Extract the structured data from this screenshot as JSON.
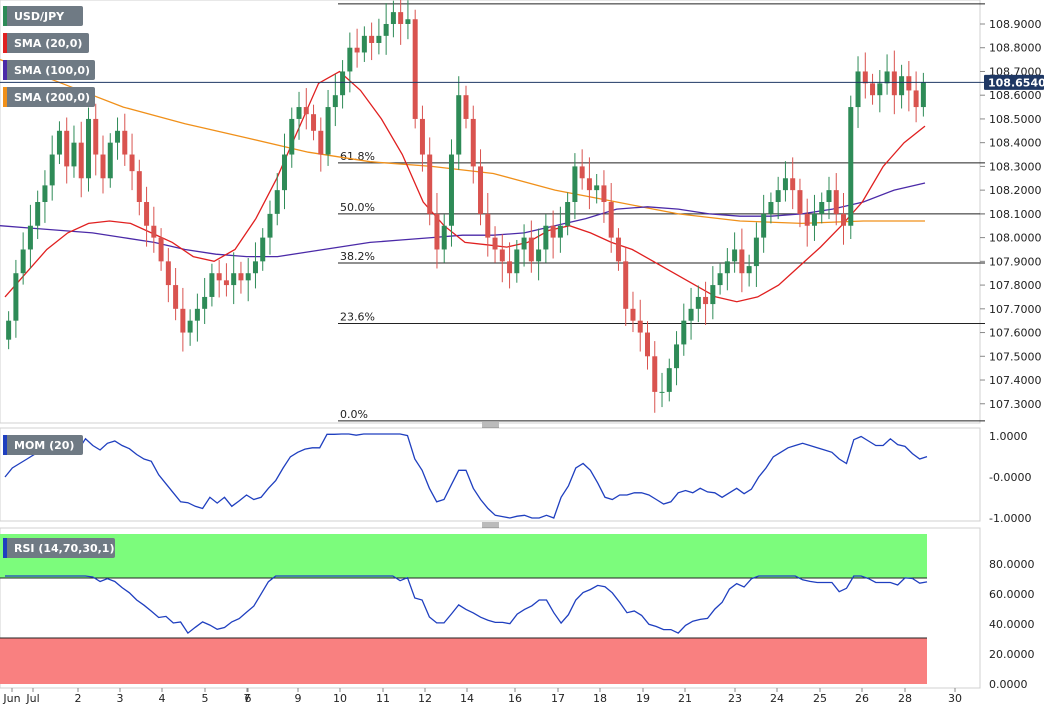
{
  "legend": {
    "symbol": "USD/JPY",
    "sma20": "SMA (20,0)",
    "sma100": "SMA (100,0)",
    "sma200": "SMA (200,0)",
    "mom": "MOM (20)",
    "rsi": "RSI (14,70,30,1)"
  },
  "colors": {
    "bull": "#2e8b57",
    "bear": "#d9534f",
    "sma20": "#e02020",
    "sma100": "#4b2aa8",
    "sma200": "#f0901a",
    "mom": "#1f3fbf",
    "rsi": "#1f3fbf",
    "overbought_zone": "#7cfc7c",
    "oversold_zone": "#f98080",
    "price_tag": "#1f3864"
  },
  "chart_data": {
    "type": "candlestick",
    "price_axis": {
      "ticks": [
        "108.9000",
        "108.8000",
        "108.7000",
        "108.6000",
        "108.5000",
        "108.4000",
        "108.3000",
        "108.2000",
        "108.1000",
        "108.0000",
        "107.9000",
        "107.8000",
        "107.7000",
        "107.6000",
        "107.5000",
        "107.4000",
        "107.3000"
      ],
      "ylim": [
        107.24,
        108.98
      ]
    },
    "last_price": "108.6540",
    "x_axis": {
      "ticks": [
        "Jun",
        "Jul",
        "2",
        "3",
        "4",
        "5",
        "6",
        "7",
        "9",
        "10",
        "11",
        "12",
        "14",
        "16",
        "17",
        "18",
        "19",
        "21",
        "23",
        "24",
        "25",
        "26",
        "28",
        "30"
      ]
    },
    "fibonacci": [
      {
        "label": "61.8%",
        "price": 108.315
      },
      {
        "label": "50.0%",
        "price": 108.1
      },
      {
        "label": "38.2%",
        "price": 107.893
      },
      {
        "label": "23.6%",
        "price": 107.638
      },
      {
        "label": "0.0%",
        "price": 107.228
      }
    ],
    "fib_top": 108.985,
    "candles_approx_close": [
      107.65,
      107.85,
      107.95,
      108.05,
      108.15,
      108.22,
      108.35,
      108.45,
      108.3,
      108.4,
      108.25,
      108.5,
      108.35,
      108.25,
      108.4,
      108.45,
      108.35,
      108.28,
      108.15,
      108.05,
      108.0,
      107.9,
      107.8,
      107.7,
      107.6,
      107.65,
      107.7,
      107.75,
      107.85,
      107.82,
      107.8,
      107.85,
      107.82,
      107.85,
      107.9,
      108.0,
      108.1,
      108.2,
      108.35,
      108.5,
      108.55,
      108.52,
      108.45,
      108.35,
      108.55,
      108.6,
      108.7,
      108.8,
      108.78,
      108.85,
      108.82,
      108.85,
      108.9,
      108.95,
      108.9,
      108.92,
      108.5,
      108.35,
      108.1,
      107.95,
      108.05,
      108.35,
      108.6,
      108.5,
      108.3,
      108.1,
      108.0,
      107.95,
      107.9,
      107.85,
      107.95,
      108.0,
      107.9,
      107.95,
      108.05,
      108.0,
      108.05,
      108.15,
      108.3,
      108.25,
      108.2,
      108.22,
      108.15,
      108.0,
      107.9,
      107.7,
      107.65,
      107.6,
      107.5,
      107.35,
      107.35,
      107.45,
      107.55,
      107.65,
      107.7,
      107.75,
      107.72,
      107.8,
      107.85,
      107.9,
      107.95,
      107.85,
      107.88,
      108.0,
      108.1,
      108.15,
      108.2,
      108.25,
      108.2,
      108.1,
      108.05,
      108.1,
      108.15,
      108.2,
      108.1,
      108.05,
      108.55,
      108.7,
      108.65,
      108.6,
      108.65,
      108.7,
      108.6,
      108.68,
      108.62,
      108.55,
      108.654
    ],
    "sma20_approx": [
      107.75,
      107.85,
      107.95,
      108.02,
      108.06,
      108.07,
      108.06,
      108.02,
      107.98,
      107.92,
      107.9,
      107.95,
      108.08,
      108.25,
      108.45,
      108.65,
      108.7,
      108.62,
      108.5,
      108.35,
      108.15,
      108.05,
      107.98,
      107.97,
      107.96,
      107.98,
      108.03,
      108.05,
      108.02,
      107.98,
      107.95,
      107.9,
      107.85,
      107.8,
      107.75,
      107.73,
      107.75,
      107.8,
      107.88,
      107.96,
      108.05,
      108.15,
      108.3,
      108.4,
      108.47
    ],
    "sma100_approx": [
      108.05,
      108.04,
      108.03,
      108.02,
      108.0,
      107.98,
      107.95,
      107.93,
      107.92,
      107.92,
      107.94,
      107.96,
      107.98,
      107.99,
      108.0,
      108.01,
      108.01,
      108.02,
      108.05,
      108.08,
      108.12,
      108.13,
      108.12,
      108.1,
      108.09,
      108.09,
      108.1,
      108.12,
      108.15,
      108.2,
      108.23
    ],
    "sma200_approx": [
      108.75,
      108.65,
      108.55,
      108.48,
      108.42,
      108.36,
      108.32,
      108.3,
      108.27,
      108.2,
      108.15,
      108.1,
      108.07,
      108.06,
      108.07,
      108.07
    ],
    "mom": {
      "ticks": [
        "1.0000",
        "-0.0000",
        "-1.0000"
      ],
      "ylim": [
        -1.05,
        1.1
      ]
    },
    "rsi": {
      "ticks": [
        "80.0000",
        "60.0000",
        "40.0000",
        "20.0000",
        "0.0000"
      ],
      "ylim": [
        0,
        100
      ],
      "overbought": 70,
      "oversold": 30
    }
  }
}
